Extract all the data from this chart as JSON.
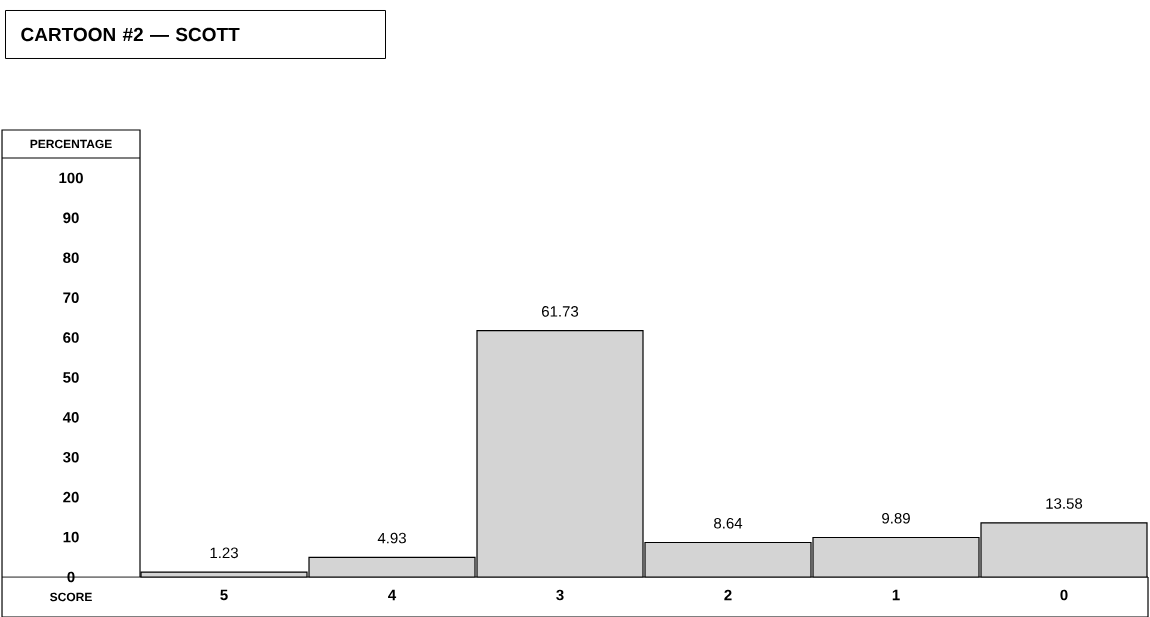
{
  "chart_data": {
    "type": "bar",
    "title": "CARTOON #2 — SCOTT",
    "xlabel": "SCORE",
    "ylabel": "PERCENTAGE",
    "categories": [
      "5",
      "4",
      "3",
      "2",
      "1",
      "0"
    ],
    "values": [
      1.23,
      4.93,
      61.73,
      8.64,
      9.89,
      13.58
    ],
    "color": "#d4d4d4",
    "value_labels": [
      "1.23",
      "4.93",
      "61.73",
      "8.64",
      "9.89",
      "13.58"
    ],
    "ylim": [
      0,
      105
    ],
    "yticks": [
      0,
      10,
      20,
      30,
      40,
      50,
      60,
      70,
      80,
      90,
      100
    ]
  }
}
